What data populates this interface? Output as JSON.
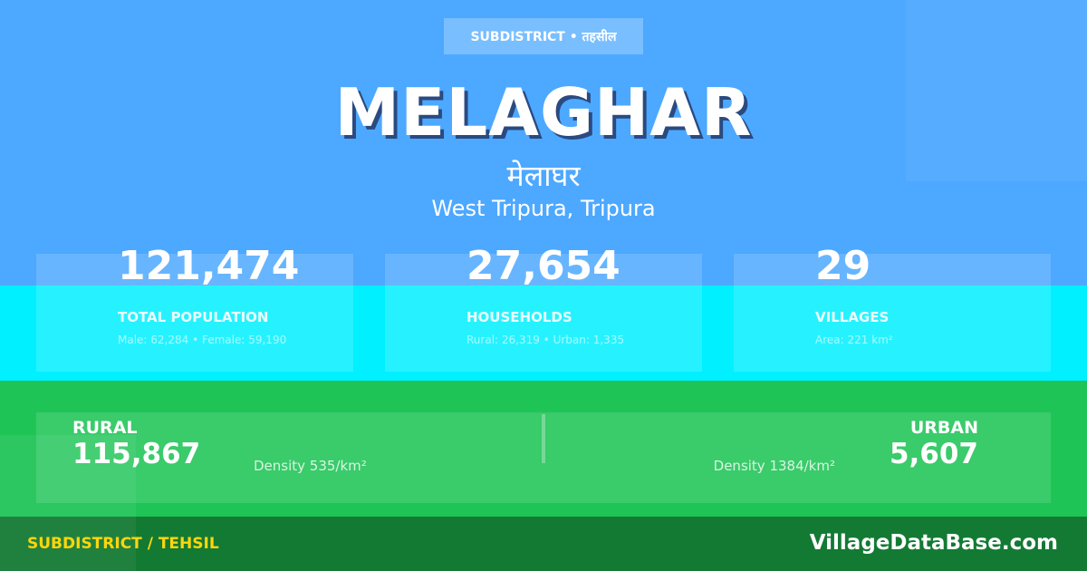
{
  "colors": {
    "top": "#4DA8FF",
    "stats": "#00F0FF",
    "panel": "#1FC457",
    "footer": "#137A34",
    "footer_label": "#FFD60A"
  },
  "badge": "SUBDISTRICT • तहसील",
  "title": "MELAGHAR",
  "title_hindi": "मेलाघर",
  "location": "West Tripura, Tripura",
  "stats": [
    {
      "value": "121,474",
      "label": "TOTAL POPULATION",
      "sub": "Male: 62,284 • Female: 59,190"
    },
    {
      "value": "27,654",
      "label": "HOUSEHOLDS",
      "sub": "Rural: 26,319 • Urban: 1,335"
    },
    {
      "value": "29",
      "label": "VILLAGES",
      "sub": "Area: 221 km²"
    }
  ],
  "rural": {
    "label": "RURAL",
    "value": "115,867",
    "density": "Density 535/km²"
  },
  "urban": {
    "label": "URBAN",
    "value": "5,607",
    "density": "Density 1384/km²"
  },
  "footer": {
    "left": "SUBDISTRICT / TEHSIL",
    "right": "VillageDataBase.com"
  }
}
